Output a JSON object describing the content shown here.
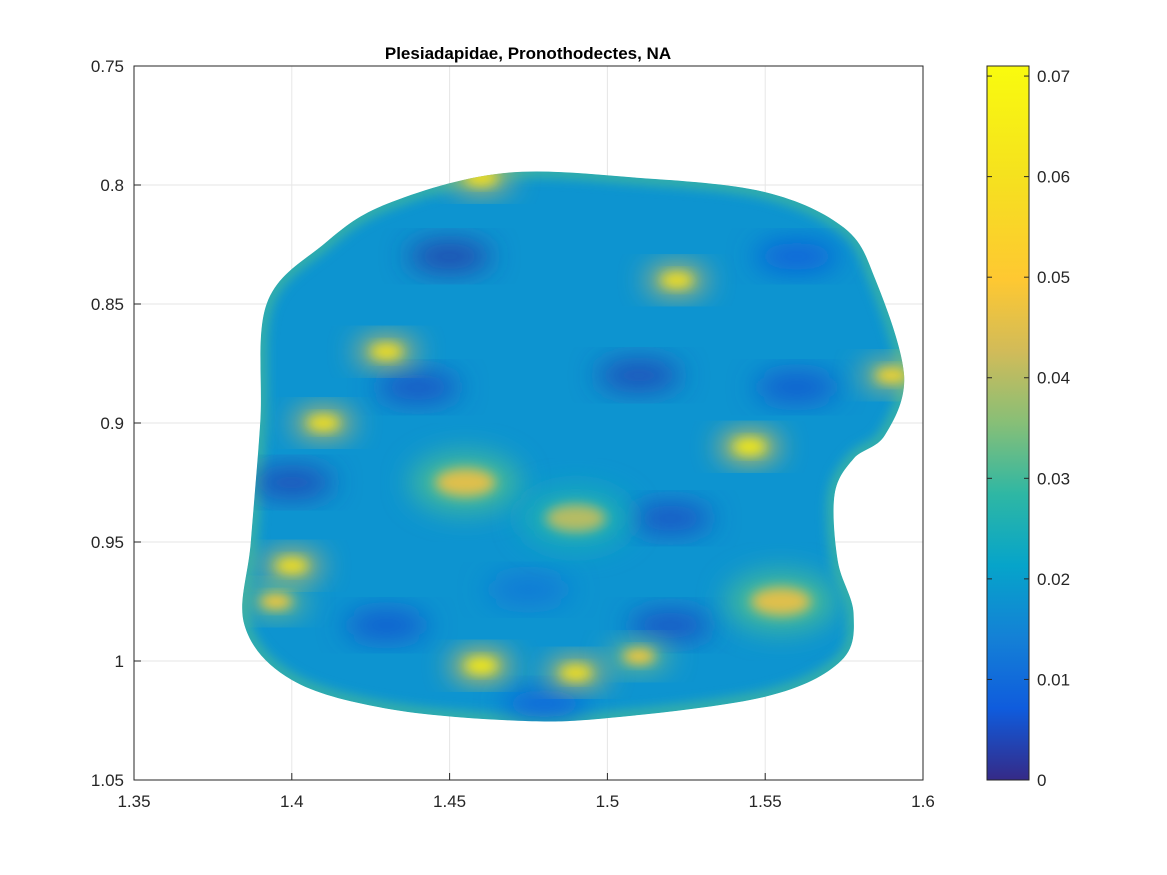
{
  "chart_data": {
    "type": "heatmap",
    "title": "Plesiadapidae, Pronothodectes, NA",
    "xlabel": "",
    "ylabel": "",
    "xlim": [
      1.35,
      1.6
    ],
    "ylim": [
      0.75,
      1.05
    ],
    "y_reversed": true,
    "grid": true,
    "x_ticks": [
      "1.35",
      "1.4",
      "1.45",
      "1.5",
      "1.55",
      "1.6"
    ],
    "y_ticks": [
      "0.75",
      "0.8",
      "0.85",
      "0.9",
      "0.95",
      "1",
      "1.05"
    ],
    "colorbar": {
      "colormap": "parula",
      "range": [
        0,
        0.071
      ],
      "ticks": [
        "0",
        "0.01",
        "0.02",
        "0.03",
        "0.04",
        "0.05",
        "0.06",
        "0.07"
      ],
      "placement": "right"
    },
    "surface_outline": [
      [
        1.467,
        0.795
      ],
      [
        1.51,
        0.797
      ],
      [
        1.55,
        0.803
      ],
      [
        1.575,
        0.818
      ],
      [
        1.585,
        0.84
      ],
      [
        1.594,
        0.88
      ],
      [
        1.588,
        0.905
      ],
      [
        1.578,
        0.915
      ],
      [
        1.572,
        0.93
      ],
      [
        1.573,
        0.958
      ],
      [
        1.578,
        0.98
      ],
      [
        1.574,
        1.0
      ],
      [
        1.55,
        1.015
      ],
      [
        1.5,
        1.024
      ],
      [
        1.47,
        1.025
      ],
      [
        1.43,
        1.02
      ],
      [
        1.4,
        1.008
      ],
      [
        1.385,
        0.985
      ],
      [
        1.387,
        0.95
      ],
      [
        1.39,
        0.9
      ],
      [
        1.392,
        0.85
      ],
      [
        1.41,
        0.825
      ],
      [
        1.43,
        0.808
      ]
    ],
    "hotspots": [
      {
        "x": 1.46,
        "y": 0.797,
        "value": 0.06
      },
      {
        "x": 1.522,
        "y": 0.84,
        "value": 0.06
      },
      {
        "x": 1.43,
        "y": 0.87,
        "value": 0.06
      },
      {
        "x": 1.41,
        "y": 0.9,
        "value": 0.06
      },
      {
        "x": 1.545,
        "y": 0.91,
        "value": 0.065
      },
      {
        "x": 1.59,
        "y": 0.88,
        "value": 0.055
      },
      {
        "x": 1.4,
        "y": 0.96,
        "value": 0.06
      },
      {
        "x": 1.46,
        "y": 1.002,
        "value": 0.065
      },
      {
        "x": 1.49,
        "y": 1.005,
        "value": 0.06
      },
      {
        "x": 1.455,
        "y": 0.925,
        "value": 0.045
      },
      {
        "x": 1.49,
        "y": 0.94,
        "value": 0.04
      },
      {
        "x": 1.555,
        "y": 0.975,
        "value": 0.045
      },
      {
        "x": 1.51,
        "y": 0.998,
        "value": 0.05
      },
      {
        "x": 1.395,
        "y": 0.975,
        "value": 0.05
      }
    ],
    "lowspots": [
      {
        "x": 1.45,
        "y": 0.83,
        "value": 0.003
      },
      {
        "x": 1.44,
        "y": 0.885,
        "value": 0.005
      },
      {
        "x": 1.51,
        "y": 0.88,
        "value": 0.004
      },
      {
        "x": 1.56,
        "y": 0.885,
        "value": 0.006
      },
      {
        "x": 1.4,
        "y": 0.925,
        "value": 0.004
      },
      {
        "x": 1.52,
        "y": 0.94,
        "value": 0.005
      },
      {
        "x": 1.43,
        "y": 0.985,
        "value": 0.006
      },
      {
        "x": 1.52,
        "y": 0.985,
        "value": 0.005
      },
      {
        "x": 1.48,
        "y": 1.018,
        "value": 0.008
      },
      {
        "x": 1.56,
        "y": 0.83,
        "value": 0.007
      },
      {
        "x": 1.475,
        "y": 0.97,
        "value": 0.012
      }
    ],
    "base_value": 0.018
  }
}
